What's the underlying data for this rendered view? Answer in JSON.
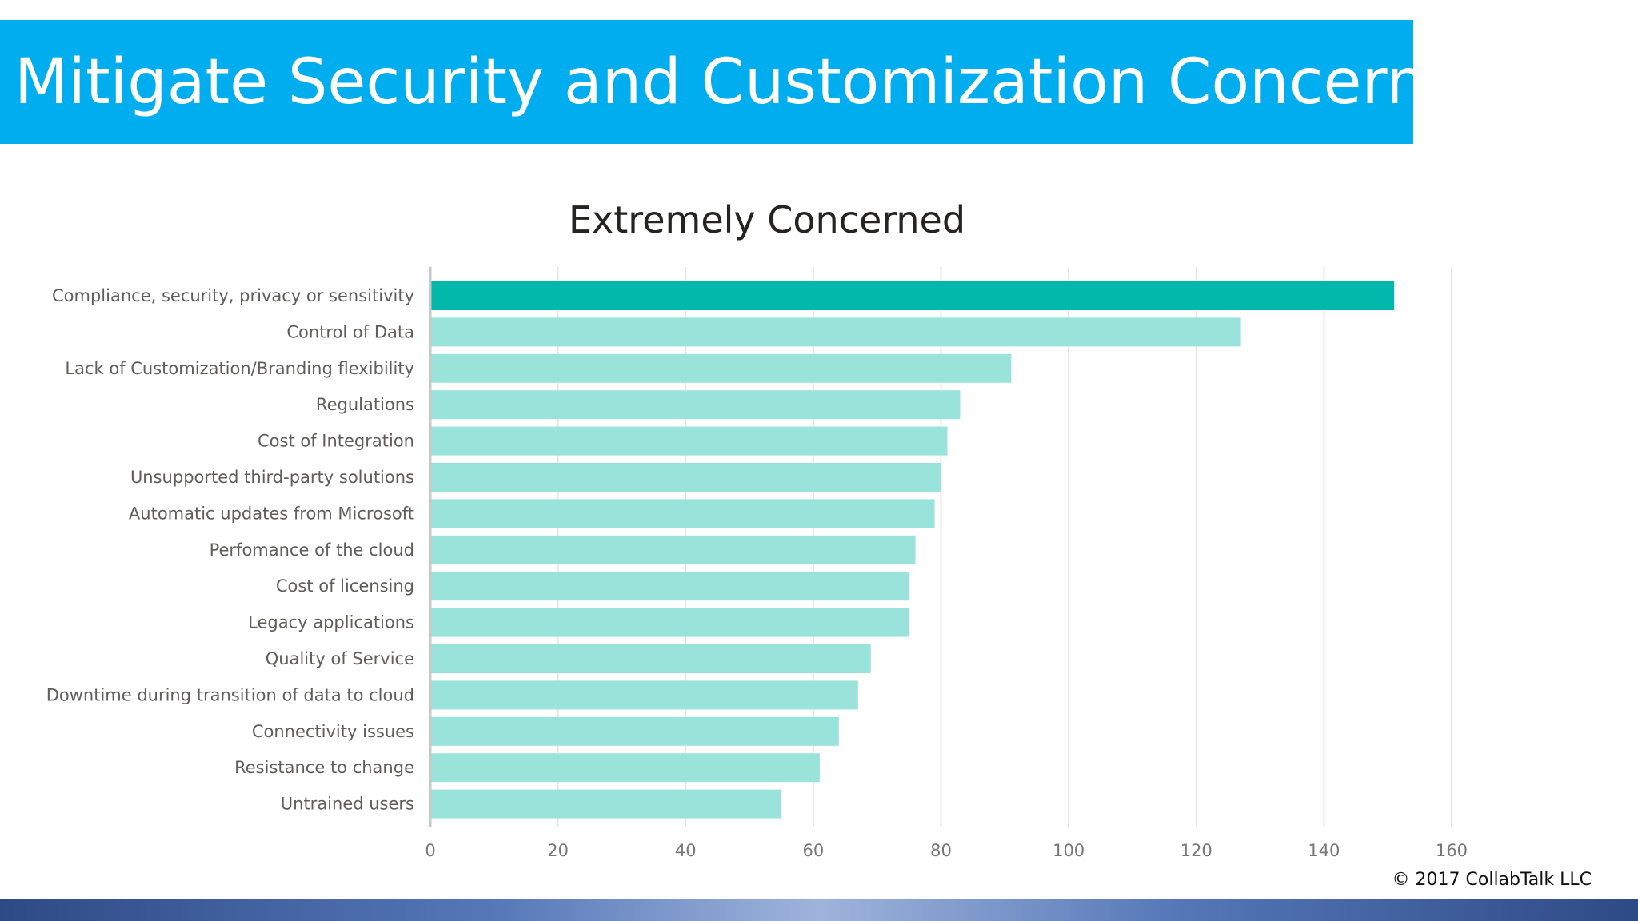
{
  "slide": {
    "title": "Mitigate Security and Customization Concerns",
    "copyright": "© 2017 CollabTalk LLC"
  },
  "colors": {
    "banner": "#00adee",
    "highlight_bar": "#01b8aa",
    "bar": "#99e3da",
    "gridline": "#e6e6e6"
  },
  "chart_data": {
    "type": "bar",
    "orientation": "horizontal",
    "title": "Extremely Concerned",
    "categories": [
      "Compliance, security, privacy or sensitivity",
      "Control of Data",
      "Lack of Customization/Branding flexibility",
      "Regulations",
      "Cost of Integration",
      "Unsupported third-party solutions",
      "Automatic updates from Microsoft",
      "Perfomance of the cloud",
      "Cost of licensing",
      "Legacy applications",
      "Quality of Service",
      "Downtime during transition of data to cloud",
      "Connectivity issues",
      "Resistance to change",
      "Untrained users"
    ],
    "values": [
      151,
      127,
      91,
      83,
      81,
      80,
      79,
      76,
      75,
      75,
      69,
      67,
      64,
      61,
      55
    ],
    "highlighted_index": 0,
    "xlim": [
      0,
      160
    ],
    "xticks": [
      0,
      20,
      40,
      60,
      80,
      100,
      120,
      140,
      160
    ],
    "xlabel": "",
    "ylabel": "",
    "grid": true,
    "legend": "none"
  }
}
